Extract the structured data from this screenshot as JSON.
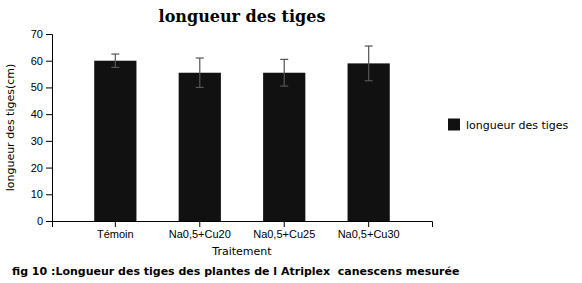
{
  "chart_data": {
    "type": "bar",
    "title": "longueur des tiges",
    "categories": [
      "Témoin",
      "Na0,5+Cu20",
      "Na0,5+Cu25",
      "Na0,5+Cu30"
    ],
    "series": [
      {
        "name": "longueur des tiges",
        "color": "#111111",
        "values": [
          60,
          55.5,
          55.5,
          59
        ],
        "errors": [
          2.5,
          5.5,
          5,
          6.5
        ]
      }
    ],
    "xlabel": "Traitement",
    "ylabel": "longueur des tiges(cm)",
    "ylim": [
      0,
      70
    ],
    "yticks": [
      0,
      10,
      20,
      30,
      40,
      50,
      60,
      70
    ],
    "grid": false,
    "legend": "right",
    "annotations": [
      "fig 10 :Longueur des tiges des plantes de l Atriplex  canescens mesurée"
    ]
  }
}
